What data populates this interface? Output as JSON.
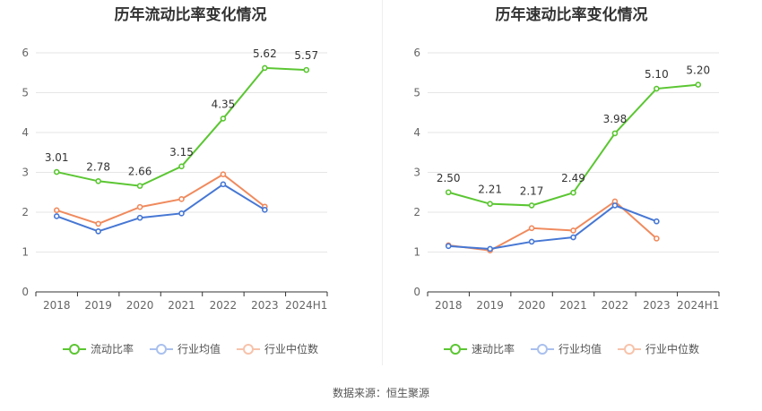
{
  "source": "数据来源：恒生聚源",
  "chart_data": [
    {
      "type": "line",
      "title": "历年流动比率变化情况",
      "categories": [
        "2018",
        "2019",
        "2020",
        "2021",
        "2022",
        "2023",
        "2024H1"
      ],
      "ylim": [
        0,
        6
      ],
      "yticks": [
        0,
        1,
        2,
        3,
        4,
        5,
        6
      ],
      "grid": true,
      "legend_position": "bottom",
      "series": [
        {
          "name": "流动比率",
          "color": "#5bc632",
          "values": [
            3.01,
            2.78,
            2.66,
            3.15,
            4.35,
            5.62,
            5.57
          ],
          "labels": [
            "3.01",
            "2.78",
            "2.66",
            "3.15",
            "4.35",
            "5.62",
            "5.57"
          ]
        },
        {
          "name": "行业均值",
          "color": "#4677d4",
          "values": [
            1.9,
            1.52,
            1.86,
            1.97,
            2.7,
            2.06,
            null
          ]
        },
        {
          "name": "行业中位数",
          "color": "#f08a5d",
          "values": [
            2.05,
            1.71,
            2.13,
            2.33,
            2.95,
            2.14,
            null
          ]
        }
      ]
    },
    {
      "type": "line",
      "title": "历年速动比率变化情况",
      "categories": [
        "2018",
        "2019",
        "2020",
        "2021",
        "2022",
        "2023",
        "2024H1"
      ],
      "ylim": [
        0,
        6
      ],
      "yticks": [
        0,
        1,
        2,
        3,
        4,
        5,
        6
      ],
      "grid": true,
      "legend_position": "bottom",
      "series": [
        {
          "name": "速动比率",
          "color": "#5bc632",
          "values": [
            2.5,
            2.21,
            2.17,
            2.49,
            3.98,
            5.1,
            5.2
          ],
          "labels": [
            "2.50",
            "2.21",
            "2.17",
            "2.49",
            "3.98",
            "5.10",
            "5.20"
          ]
        },
        {
          "name": "行业均值",
          "color": "#4677d4",
          "values": [
            1.15,
            1.08,
            1.26,
            1.37,
            2.17,
            1.77,
            null
          ]
        },
        {
          "name": "行业中位数",
          "color": "#f08a5d",
          "values": [
            1.17,
            1.04,
            1.6,
            1.54,
            2.27,
            1.34,
            null
          ]
        }
      ]
    }
  ]
}
